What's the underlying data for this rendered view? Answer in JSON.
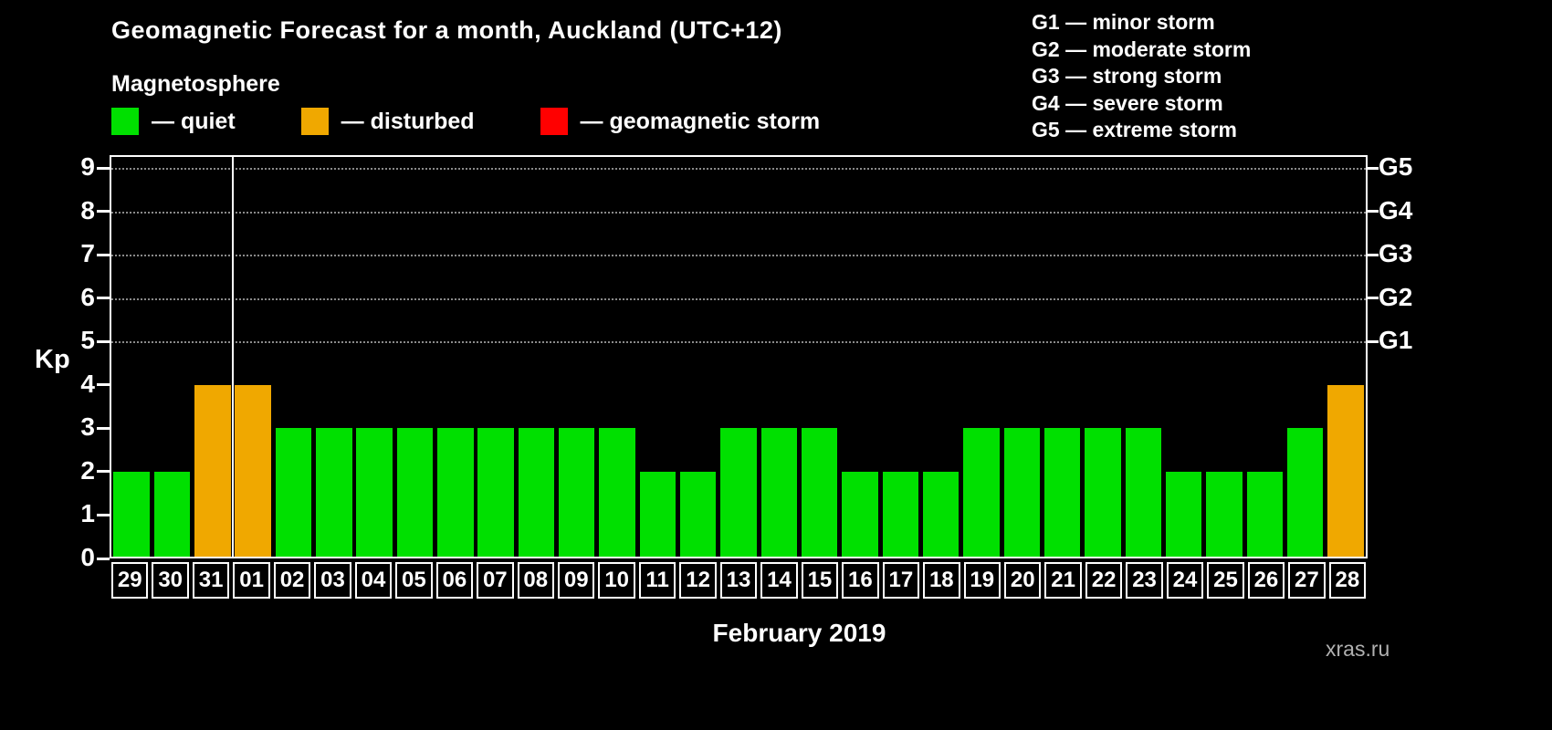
{
  "page": {
    "background": "#000000",
    "text_color": "#ffffff"
  },
  "header": {
    "title": "Geomagnetic Forecast for a month, Auckland (UTC+12)",
    "subtitle": "Magnetosphere"
  },
  "legend": {
    "items": [
      {
        "key": "quiet",
        "label": "— quiet",
        "color": "#00e000"
      },
      {
        "key": "disturbed",
        "label": "— disturbed",
        "color": "#f0a800"
      },
      {
        "key": "storm",
        "label": "— geomagnetic storm",
        "color": "#ff0000"
      }
    ]
  },
  "g_scale_legend": {
    "items": [
      "G1 — minor storm",
      "G2 — moderate storm",
      "G3 — strong storm",
      "G4 — severe storm",
      "G5 — extreme storm"
    ]
  },
  "axes": {
    "y_left_label": "Kp",
    "y_left_ticks": [
      "0",
      "1",
      "2",
      "3",
      "4",
      "5",
      "6",
      "7",
      "8",
      "9"
    ],
    "y_right_ticks": [
      {
        "label": "G1",
        "kp": 5
      },
      {
        "label": "G2",
        "kp": 6
      },
      {
        "label": "G3",
        "kp": 7
      },
      {
        "label": "G4",
        "kp": 8
      },
      {
        "label": "G5",
        "kp": 9
      }
    ],
    "x_label": "February 2019"
  },
  "watermark": "xras.ru",
  "chart_data": {
    "type": "bar",
    "title": "Geomagnetic Forecast for a month, Auckland (UTC+12)",
    "ylabel": "Kp",
    "xlabel": "February 2019",
    "ylim": [
      0,
      9.3
    ],
    "grid": "horizontal dotted lines at Kp 5-9 (G1-G5)",
    "gridlines_kp": [
      5,
      6,
      7,
      8,
      9
    ],
    "categories": [
      "29",
      "30",
      "31",
      "01",
      "02",
      "03",
      "04",
      "05",
      "06",
      "07",
      "08",
      "09",
      "10",
      "11",
      "12",
      "13",
      "14",
      "15",
      "16",
      "17",
      "18",
      "19",
      "20",
      "21",
      "22",
      "23",
      "24",
      "25",
      "26",
      "27",
      "28"
    ],
    "values": [
      2,
      2,
      4,
      4,
      3,
      3,
      3,
      3,
      3,
      3,
      3,
      3,
      3,
      2,
      2,
      3,
      3,
      3,
      2,
      2,
      2,
      3,
      3,
      3,
      3,
      3,
      2,
      2,
      2,
      3,
      4
    ],
    "statuses": [
      "quiet",
      "quiet",
      "disturbed",
      "disturbed",
      "quiet",
      "quiet",
      "quiet",
      "quiet",
      "quiet",
      "quiet",
      "quiet",
      "quiet",
      "quiet",
      "quiet",
      "quiet",
      "quiet",
      "quiet",
      "quiet",
      "quiet",
      "quiet",
      "quiet",
      "quiet",
      "quiet",
      "quiet",
      "quiet",
      "quiet",
      "quiet",
      "quiet",
      "quiet",
      "quiet",
      "disturbed"
    ],
    "status_colors": {
      "quiet": "#00e000",
      "disturbed": "#f0a800",
      "storm": "#ff0000"
    },
    "month_separator_after_index": 2,
    "legend_position": "top-left",
    "g_legend_position": "top-right"
  }
}
